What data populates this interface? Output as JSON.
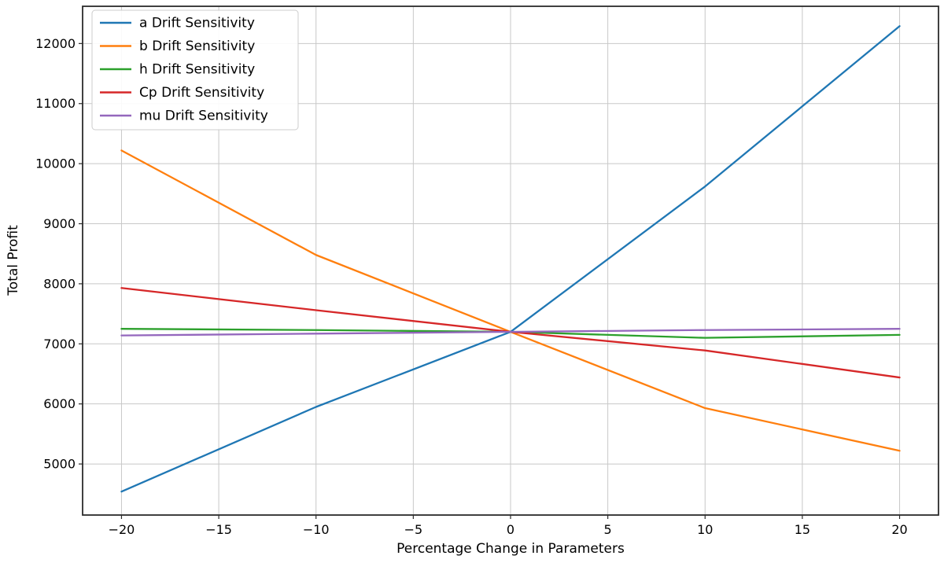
{
  "figure": {
    "background": "#ffffff"
  },
  "chart_data": {
    "type": "line",
    "title": "",
    "xlabel": "Percentage Change in Parameters",
    "ylabel": "Total Profit",
    "x": [
      -20,
      -10,
      0,
      10,
      20
    ],
    "series": [
      {
        "name": "a Drift Sensitivity",
        "color": "#1f77b4",
        "values": [
          4540,
          5950,
          7200,
          9620,
          12290
        ]
      },
      {
        "name": "b Drift Sensitivity",
        "color": "#ff7f0e",
        "values": [
          10220,
          8480,
          7200,
          5930,
          5220
        ]
      },
      {
        "name": "h Drift Sensitivity",
        "color": "#2ca02c",
        "values": [
          7250,
          7230,
          7200,
          7100,
          7150
        ]
      },
      {
        "name": "Cp Drift Sensitivity",
        "color": "#d62728",
        "values": [
          7930,
          7560,
          7200,
          6890,
          6440
        ]
      },
      {
        "name": "mu Drift Sensitivity",
        "color": "#9467bd",
        "values": [
          7140,
          7170,
          7200,
          7230,
          7250
        ]
      }
    ],
    "xlim": [
      -22,
      22
    ],
    "ylim": [
      4150,
      12620
    ],
    "xticks": [
      -20,
      -15,
      -10,
      -5,
      0,
      5,
      10,
      15,
      20
    ],
    "yticks": [
      5000,
      6000,
      7000,
      8000,
      9000,
      10000,
      11000,
      12000
    ],
    "grid": true,
    "legend": {
      "position": "upper left",
      "entries": [
        "a Drift Sensitivity",
        "b Drift Sensitivity",
        "h Drift Sensitivity",
        "Cp Drift Sensitivity",
        "mu Drift Sensitivity"
      ]
    }
  },
  "style": {
    "grid_color": "#c8c8c8",
    "spine_color": "#2b2b2b",
    "tick_color": "#2b2b2b",
    "text_color": "#000000",
    "line_width": 2.3,
    "legend_border": "#cccccc",
    "legend_background": "#ffffff"
  }
}
